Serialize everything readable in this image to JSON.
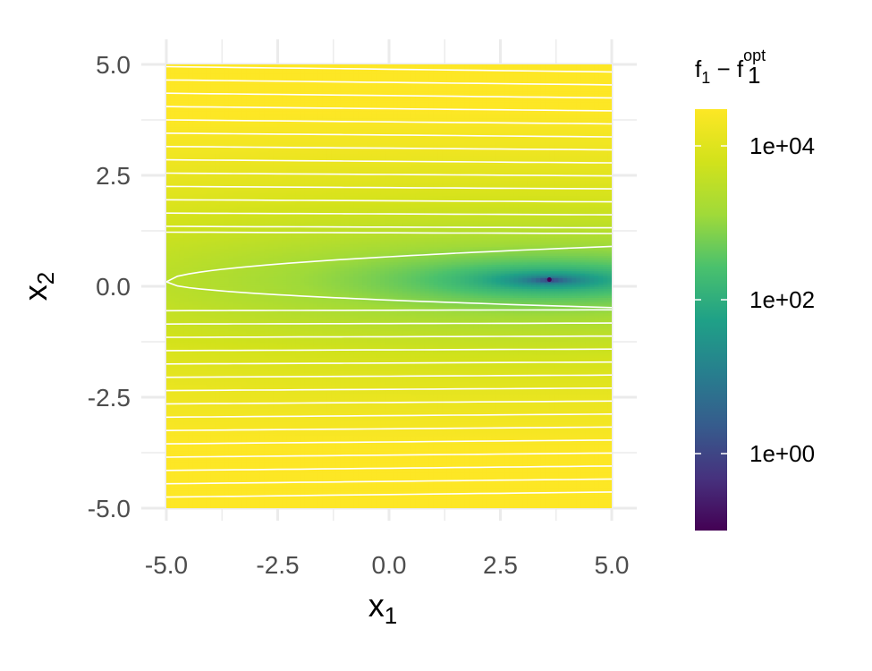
{
  "chart_data": {
    "type": "heatmap",
    "x_axis": {
      "title": "x",
      "title_subscript": "1",
      "range": [
        -5,
        5
      ],
      "ticks": [
        -5.0,
        -2.5,
        0.0,
        2.5,
        5.0
      ],
      "tick_labels": [
        "-5.0",
        "-2.5",
        "0.0",
        "2.5",
        "5.0"
      ]
    },
    "y_axis": {
      "title": "x",
      "title_subscript": "2",
      "range": [
        -5,
        5
      ],
      "ticks": [
        -5.0,
        -2.5,
        0.0,
        2.5,
        5.0
      ],
      "tick_labels": [
        "-5.0",
        "-2.5",
        "0.0",
        "2.5",
        "5.0"
      ]
    },
    "fill_variable": {
      "title_main": "f",
      "title_main_sub": "1",
      "title_minus": " − ",
      "title_opt": "f",
      "title_opt_sub": "1",
      "title_opt_sup": "opt",
      "scale": "log10",
      "palette": "viridis",
      "range": [
        0.1,
        30000
      ],
      "legend_breaks": [
        1,
        100,
        10000
      ],
      "legend_labels": [
        "1e+00",
        "1e+02",
        "1e+04"
      ]
    },
    "optimum": {
      "x1": 3.6,
      "x2": 0.15
    },
    "contours": {
      "color": "#ffffff",
      "shown": true
    },
    "grid": true,
    "legend_position": "right"
  }
}
